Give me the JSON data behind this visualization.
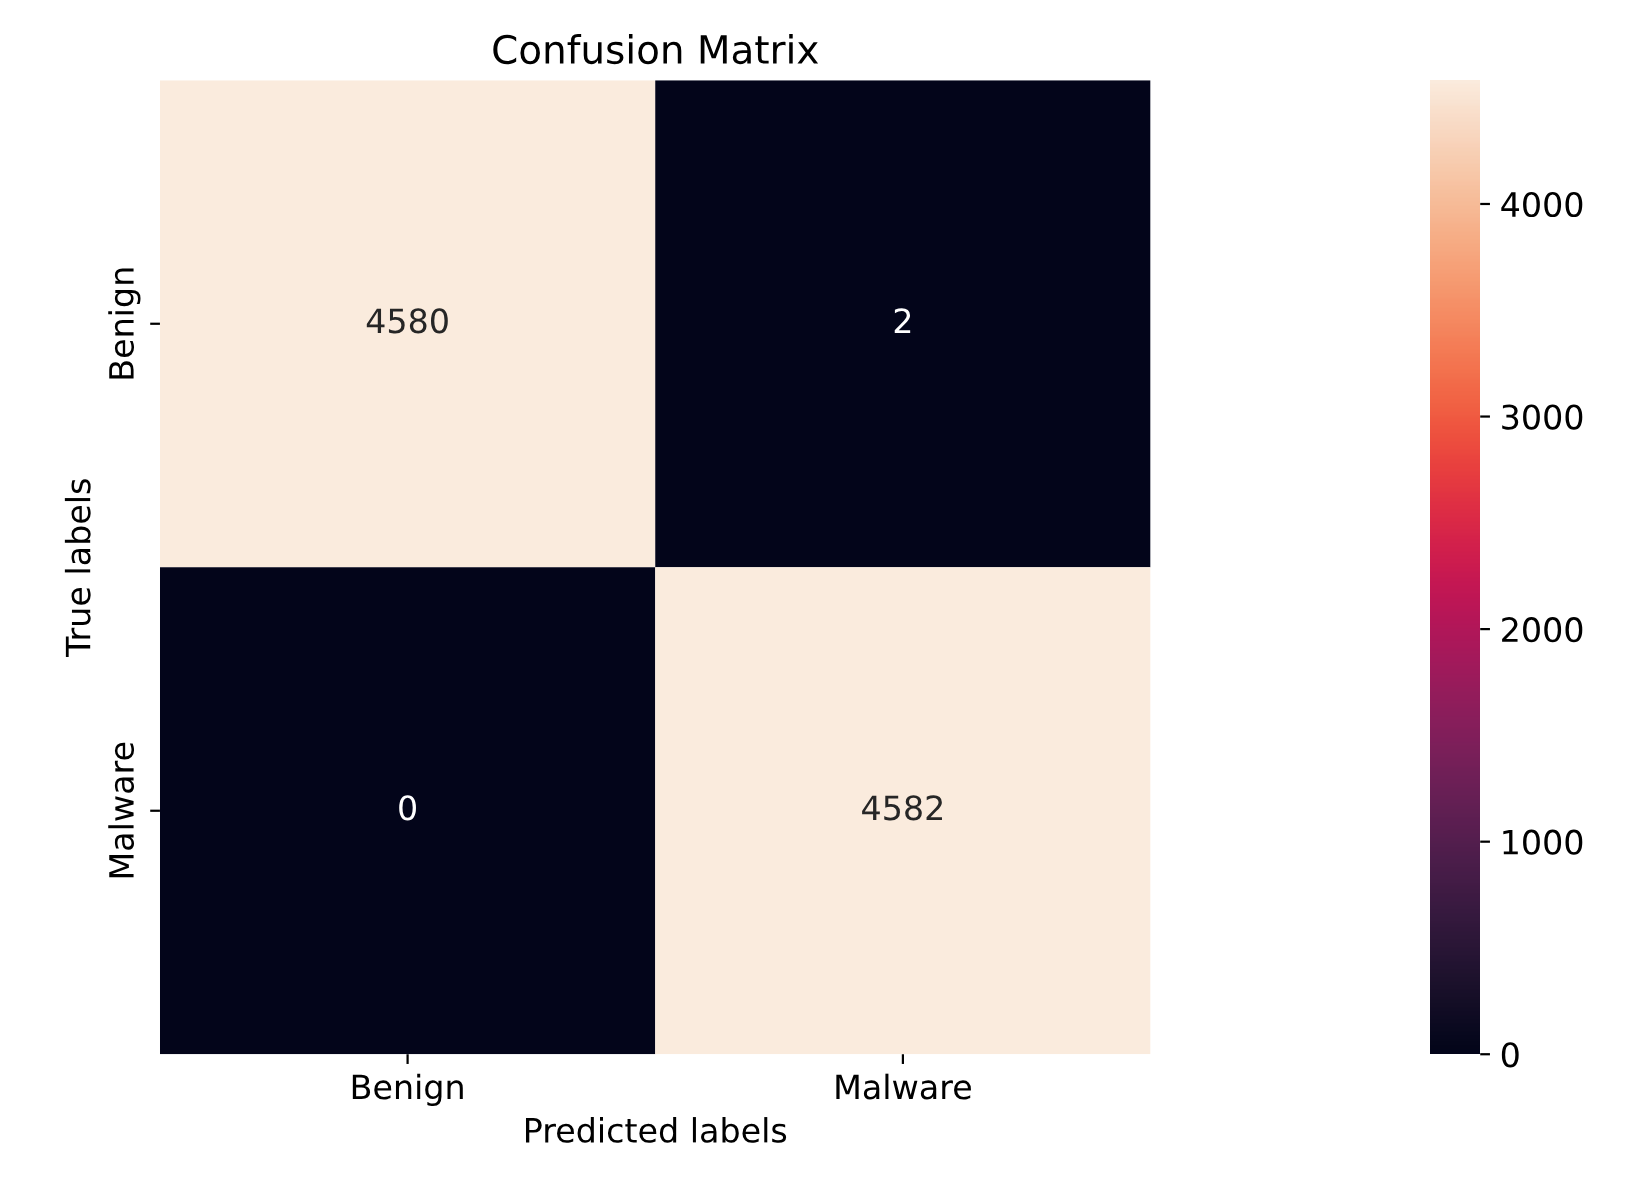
{
  "chart_data": {
    "type": "heatmap",
    "title": "Confusion Matrix",
    "xlabel": "Predicted labels",
    "ylabel": "True labels",
    "categories": [
      "Benign",
      "Malware"
    ],
    "y_categories": [
      "Benign",
      "Malware"
    ],
    "cells": [
      [
        4580,
        2
      ],
      [
        0,
        4582
      ]
    ],
    "data_labels": true,
    "clim": [
      0,
      4582
    ],
    "cticks": [
      0,
      1000,
      2000,
      3000,
      4000
    ]
  }
}
